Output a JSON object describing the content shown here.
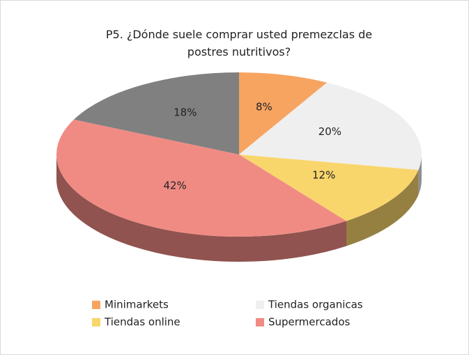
{
  "chart_data": {
    "type": "pie",
    "title": "P5. ¿Dónde suele comprar usted premezclas de postres nutritivos?",
    "categories": [
      "Minimarkets",
      "Tiendas organicas",
      "Tiendas online",
      "Supermercados",
      null
    ],
    "values": [
      8,
      20,
      12,
      42,
      18
    ],
    "value_labels": [
      "8%",
      "20%",
      "12%",
      "42%",
      "18%"
    ],
    "colors": [
      "#f7a461",
      "#efefef",
      "#f9d66c",
      "#f08b84",
      "#808080"
    ],
    "legend": "bottom"
  }
}
